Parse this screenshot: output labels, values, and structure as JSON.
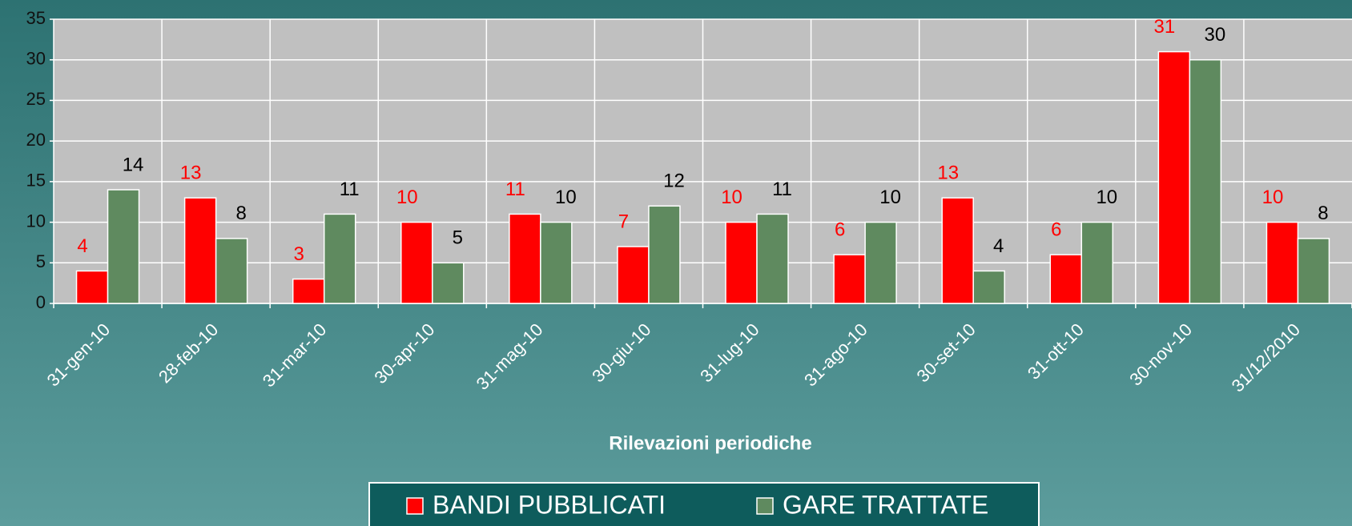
{
  "chart_data": {
    "type": "bar",
    "x_label": "Rilevazioni periodiche",
    "categories": [
      "31-gen-10",
      "28-feb-10",
      "31-mar-10",
      "30-apr-10",
      "31-mag-10",
      "30-giu-10",
      "31-lug-10",
      "31-ago-10",
      "30-set-10",
      "31-ott-10",
      "30-nov-10",
      "31/12/2010"
    ],
    "series": [
      {
        "name": "BANDI PUBBLICATI",
        "color": "#ff0000",
        "label_color": "#ff0000",
        "values": [
          4,
          13,
          3,
          10,
          11,
          7,
          10,
          6,
          13,
          6,
          31,
          10
        ]
      },
      {
        "name": "GARE TRATTATE",
        "color": "#5f8a5f",
        "label_color": "#000000",
        "values": [
          14,
          8,
          11,
          5,
          10,
          12,
          11,
          10,
          4,
          10,
          30,
          8
        ]
      }
    ],
    "ylim": [
      0,
      35
    ],
    "yticks": [
      0,
      5,
      10,
      15,
      20,
      25,
      30,
      35
    ],
    "grid": true
  }
}
